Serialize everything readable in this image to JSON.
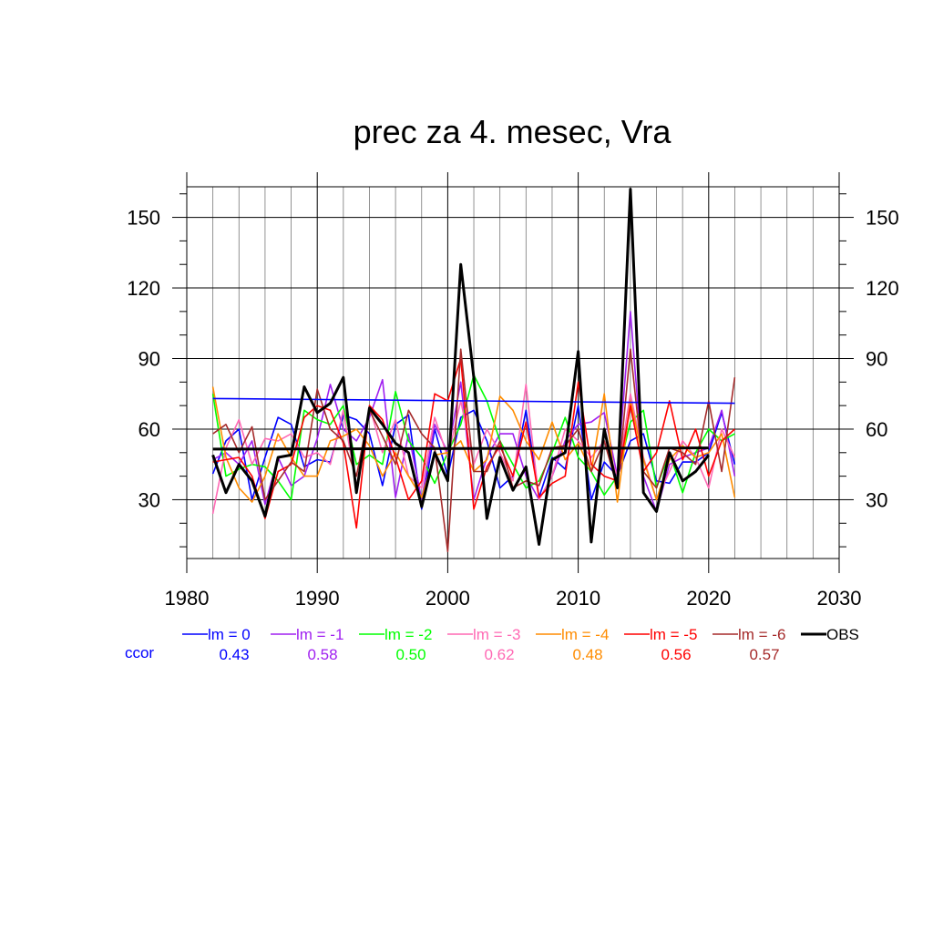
{
  "chart_data": {
    "type": "line",
    "title": "prec za 4. mesec, Vra",
    "xlabel": "",
    "ylabel": "",
    "xlim": [
      1980,
      2030
    ],
    "ylim": [
      5,
      163
    ],
    "xticks": [
      1980,
      1990,
      2000,
      2010,
      2020,
      2030
    ],
    "yticks": [
      30,
      60,
      90,
      120,
      150
    ],
    "grid": true,
    "legend_position": "bottom",
    "ccor_label": "ccor",
    "series": [
      {
        "name": "lm = 0",
        "color": "#0000ff",
        "ccor": "0.43",
        "x": [
          1982,
          1983,
          1984,
          1985,
          1986,
          1987,
          1988,
          1989,
          1990,
          1991,
          1992,
          1993,
          1994,
          1995,
          1996,
          1997,
          1998,
          1999,
          2000,
          2001,
          2002,
          2003,
          2004,
          2005,
          2006,
          2007,
          2008,
          2009,
          2010,
          2011,
          2012,
          2013,
          2014,
          2015,
          2016,
          2017,
          2018,
          2019,
          2020,
          2021,
          2022
        ],
        "y": [
          41,
          55,
          60,
          30,
          48,
          65,
          62,
          44,
          47,
          46,
          66,
          64,
          58,
          36,
          62,
          66,
          26,
          60,
          40,
          65,
          68,
          55,
          35,
          40,
          68,
          31,
          48,
          43,
          70,
          30,
          46,
          40,
          55,
          58,
          38,
          37,
          46,
          46,
          50,
          67,
          45
        ],
        "trend": [
          73,
          71
        ]
      },
      {
        "name": "lm = -1",
        "color": "#a020f0",
        "ccor": "0.58",
        "x": [
          1982,
          1983,
          1984,
          1985,
          1986,
          1987,
          1988,
          1989,
          1990,
          1991,
          1992,
          1993,
          1994,
          1995,
          1996,
          1997,
          1998,
          1999,
          2000,
          2001,
          2002,
          2003,
          2004,
          2005,
          2006,
          2007,
          2008,
          2009,
          2010,
          2011,
          2012,
          2013,
          2014,
          2015,
          2016,
          2017,
          2018,
          2019,
          2020,
          2021,
          2022
        ],
        "y": [
          47,
          50,
          45,
          55,
          28,
          48,
          36,
          40,
          56,
          79,
          60,
          55,
          65,
          81,
          31,
          58,
          30,
          62,
          50,
          80,
          30,
          48,
          58,
          58,
          40,
          30,
          40,
          55,
          62,
          63,
          67,
          40,
          110,
          40,
          25,
          45,
          48,
          50,
          52,
          68,
          40
        ]
      },
      {
        "name": "lm = -2",
        "color": "#00ff00",
        "ccor": "0.50",
        "x": [
          1982,
          1983,
          1984,
          1985,
          1986,
          1987,
          1988,
          1989,
          1990,
          1991,
          1992,
          1993,
          1994,
          1995,
          1996,
          1997,
          1998,
          1999,
          2000,
          2001,
          2002,
          2003,
          2004,
          2005,
          2006,
          2007,
          2008,
          2009,
          2010,
          2011,
          2012,
          2013,
          2014,
          2015,
          2016,
          2017,
          2018,
          2019,
          2020,
          2021,
          2022
        ],
        "y": [
          75,
          40,
          43,
          45,
          44,
          38,
          30,
          68,
          64,
          62,
          70,
          45,
          49,
          45,
          76,
          55,
          48,
          37,
          50,
          62,
          83,
          72,
          55,
          45,
          35,
          38,
          50,
          65,
          48,
          42,
          32,
          40,
          63,
          68,
          35,
          50,
          33,
          50,
          60,
          55,
          58
        ]
      },
      {
        "name": "lm = -3",
        "color": "#ff69b4",
        "ccor": "0.62",
        "x": [
          1982,
          1983,
          1984,
          1985,
          1986,
          1987,
          1988,
          1989,
          1990,
          1991,
          1992,
          1993,
          1994,
          1995,
          1996,
          1997,
          1998,
          1999,
          2000,
          2001,
          2002,
          2003,
          2004,
          2005,
          2006,
          2007,
          2008,
          2009,
          2010,
          2011,
          2012,
          2013,
          2014,
          2015,
          2016,
          2017,
          2018,
          2019,
          2020,
          2021,
          2022
        ],
        "y": [
          24,
          52,
          64,
          45,
          56,
          55,
          58,
          48,
          50,
          45,
          68,
          35,
          70,
          50,
          64,
          40,
          35,
          65,
          48,
          72,
          45,
          60,
          50,
          38,
          79,
          30,
          40,
          60,
          55,
          48,
          55,
          40,
          75,
          48,
          30,
          42,
          55,
          48,
          35,
          60,
          48
        ]
      },
      {
        "name": "lm = -4",
        "color": "#ff8c00",
        "ccor": "0.48",
        "x": [
          1982,
          1983,
          1984,
          1985,
          1986,
          1987,
          1988,
          1989,
          1990,
          1991,
          1992,
          1993,
          1994,
          1995,
          1996,
          1997,
          1998,
          1999,
          2000,
          2001,
          2002,
          2003,
          2004,
          2005,
          2006,
          2007,
          2008,
          2009,
          2010,
          2011,
          2012,
          2013,
          2014,
          2015,
          2016,
          2017,
          2018,
          2019,
          2020,
          2021,
          2022
        ],
        "y": [
          78,
          48,
          35,
          29,
          40,
          58,
          48,
          40,
          40,
          55,
          57,
          60,
          53,
          40,
          50,
          40,
          31,
          49,
          50,
          55,
          42,
          47,
          74,
          68,
          55,
          47,
          63,
          47,
          54,
          42,
          75,
          29,
          72,
          47,
          30,
          47,
          53,
          48,
          50,
          58,
          31
        ]
      },
      {
        "name": "lm = -5",
        "color": "#ff0000",
        "ccor": "0.56",
        "x": [
          1982,
          1983,
          1984,
          1985,
          1986,
          1987,
          1988,
          1989,
          1990,
          1991,
          1992,
          1993,
          1994,
          1995,
          1996,
          1997,
          1998,
          1999,
          2000,
          2001,
          2002,
          2003,
          2004,
          2005,
          2006,
          2007,
          2008,
          2009,
          2010,
          2011,
          2012,
          2013,
          2014,
          2015,
          2016,
          2017,
          2018,
          2019,
          2020,
          2021,
          2022
        ],
        "y": [
          46,
          47,
          48,
          40,
          22,
          42,
          45,
          65,
          70,
          68,
          54,
          18,
          70,
          64,
          48,
          30,
          38,
          75,
          72,
          90,
          26,
          44,
          53,
          40,
          63,
          31,
          37,
          40,
          80,
          45,
          40,
          38,
          70,
          42,
          50,
          72,
          47,
          60,
          40,
          55,
          60
        ]
      },
      {
        "name": "lm = -6",
        "color": "#a52a2a",
        "ccor": "0.57",
        "x": [
          1982,
          1983,
          1984,
          1985,
          1986,
          1987,
          1988,
          1989,
          1990,
          1991,
          1992,
          1993,
          1994,
          1995,
          1996,
          1997,
          1998,
          1999,
          2000,
          2001,
          2002,
          2003,
          2004,
          2005,
          2006,
          2007,
          2008,
          2009,
          2010,
          2011,
          2012,
          2013,
          2014,
          2015,
          2016,
          2017,
          2018,
          2019,
          2020,
          2021,
          2022
        ],
        "y": [
          58,
          62,
          50,
          61,
          30,
          38,
          46,
          42,
          77,
          60,
          55,
          40,
          68,
          57,
          45,
          68,
          58,
          52,
          8,
          94,
          42,
          42,
          55,
          35,
          38,
          36,
          52,
          53,
          60,
          42,
          55,
          35,
          94,
          42,
          35,
          52,
          50,
          45,
          72,
          42,
          82
        ]
      },
      {
        "name": "OBS",
        "color": "#000000",
        "ccor": "",
        "x": [
          1982,
          1983,
          1984,
          1985,
          1986,
          1987,
          1988,
          1989,
          1990,
          1991,
          1992,
          1993,
          1994,
          1995,
          1996,
          1997,
          1998,
          1999,
          2000,
          2001,
          2002,
          2003,
          2004,
          2005,
          2006,
          2007,
          2008,
          2009,
          2010,
          2011,
          2012,
          2013,
          2014,
          2015,
          2016,
          2017,
          2018,
          2019,
          2020
        ],
        "y": [
          49,
          33,
          45,
          38,
          23,
          48,
          49,
          78,
          67,
          71,
          82,
          33,
          69,
          62,
          54,
          50,
          27,
          50,
          38,
          130,
          82,
          22,
          48,
          34,
          44,
          11,
          47,
          50,
          93,
          12,
          60,
          35,
          162,
          33,
          25,
          50,
          38,
          42,
          49
        ],
        "trend": [
          51.5,
          52
        ]
      }
    ]
  }
}
